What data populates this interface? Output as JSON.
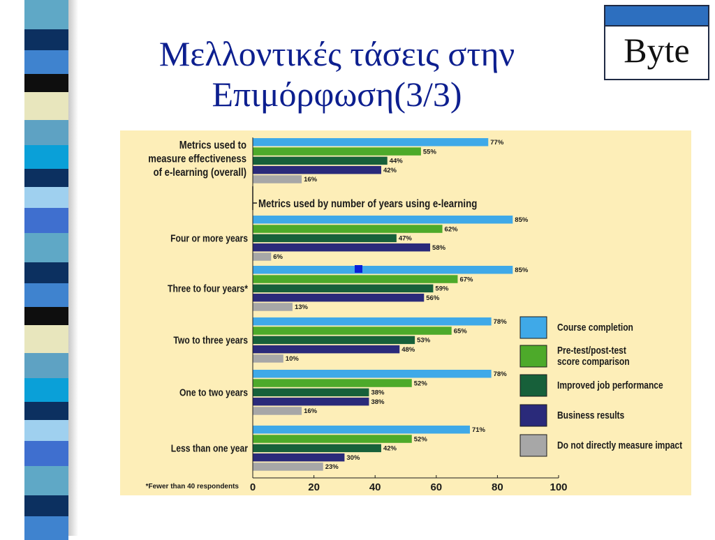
{
  "slide": {
    "title_line1": "Μελλοντικές τάσεις στην",
    "title_line2": "Επιμόρφωση(3/3)",
    "logo_text": "Byte"
  },
  "colors": {
    "title": "#0d1f8f",
    "chart_background": "#fdeeb8",
    "logo_band": "#2d6fbf",
    "marker": "#0a1fd8"
  },
  "chart_data": {
    "type": "bar",
    "orientation": "horizontal",
    "legend_position": "right",
    "grid": false,
    "xlim": [
      0,
      100
    ],
    "x_ticks": [
      "0",
      "20",
      "40",
      "60",
      "80",
      "100"
    ],
    "overall_label": [
      "Metrics used to",
      "measure effectiveness",
      "of e-learning (overall)"
    ],
    "section_label": "Metrics used by number of years using e-learning",
    "footnote": "*Fewer than 40 respondents",
    "series": [
      {
        "name": "Course completion",
        "color": "#3fa9e8"
      },
      {
        "name": "Pre-test/post-test score comparison",
        "label_lines": [
          "Pre-test/post-test",
          "score comparison"
        ],
        "color": "#4daa2a"
      },
      {
        "name": "Improved job performance",
        "color": "#17603a"
      },
      {
        "name": "Business results",
        "color": "#2a2a7a"
      },
      {
        "name": "Do not directly measure impact",
        "color": "#a7a7a7"
      }
    ],
    "groups": [
      {
        "label": "",
        "values": [
          77,
          55,
          44,
          42,
          16
        ],
        "value_labels": [
          "77%",
          "55%",
          "44%",
          "42%",
          "16%"
        ]
      },
      {
        "label": "Four or more years",
        "values": [
          85,
          62,
          47,
          58,
          6
        ],
        "value_labels": [
          "85%",
          "62%",
          "47%",
          "58%",
          "6%"
        ]
      },
      {
        "label": "Three to four years*",
        "values": [
          85,
          67,
          59,
          56,
          13
        ],
        "value_labels": [
          "85%",
          "67%",
          "59%",
          "56%",
          "13%"
        ]
      },
      {
        "label": "Two to three years",
        "values": [
          78,
          65,
          53,
          48,
          10
        ],
        "value_labels": [
          "78%",
          "65%",
          "53%",
          "48%",
          "10%"
        ]
      },
      {
        "label": "One to two years",
        "values": [
          78,
          52,
          38,
          38,
          16
        ],
        "value_labels": [
          "78%",
          "52%",
          "38%",
          "38%",
          "16%"
        ]
      },
      {
        "label": "Less than one year",
        "values": [
          71,
          52,
          42,
          30,
          23
        ],
        "value_labels": [
          "71%",
          "52%",
          "42%",
          "30%",
          "23%"
        ]
      }
    ]
  }
}
